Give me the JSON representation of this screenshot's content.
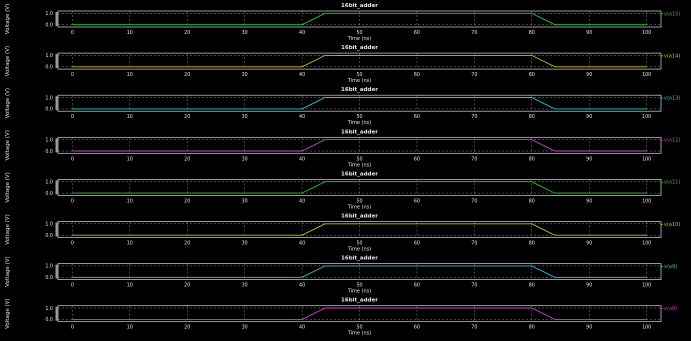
{
  "window": {
    "background": "#000000"
  },
  "chart_data": [
    {
      "type": "line",
      "title": "16bit_adder",
      "xlabel": "Time (ns)",
      "ylabel": "Voltage (V)",
      "xlim": [
        -2.5,
        102.5
      ],
      "ylim": [
        -0.2,
        1.2
      ],
      "xticks": [
        "0",
        "10",
        "20",
        "30",
        "40",
        "50",
        "60",
        "70",
        "80",
        "90",
        "100"
      ],
      "yticks": [
        "0.0",
        "1.0"
      ],
      "grid": true,
      "legend": "right",
      "series": [
        {
          "name": "v(a15)",
          "color": "#22cc22",
          "x": [
            0,
            40,
            44,
            80,
            84,
            100
          ],
          "y": [
            0,
            0,
            1,
            1,
            0,
            0
          ]
        }
      ]
    },
    {
      "type": "line",
      "title": "16bit_adder",
      "xlabel": "Time (ns)",
      "ylabel": "Voltage (V)",
      "xlim": [
        -2.5,
        102.5
      ],
      "ylim": [
        -0.2,
        1.2
      ],
      "xticks": [
        "0",
        "10",
        "20",
        "30",
        "40",
        "50",
        "60",
        "70",
        "80",
        "90",
        "100"
      ],
      "yticks": [
        "0.0",
        "1.0"
      ],
      "grid": true,
      "legend": "right",
      "series": [
        {
          "name": "v(a14)",
          "color": "#d4c000",
          "x": [
            0,
            40,
            44,
            80,
            84,
            100
          ],
          "y": [
            0,
            0,
            1,
            1,
            0,
            0
          ]
        }
      ]
    },
    {
      "type": "line",
      "title": "16bit_adder",
      "xlabel": "Time (ns)",
      "ylabel": "Voltage (V)",
      "xlim": [
        -2.5,
        102.5
      ],
      "ylim": [
        -0.2,
        1.2
      ],
      "xticks": [
        "0",
        "10",
        "20",
        "30",
        "40",
        "50",
        "60",
        "70",
        "80",
        "90",
        "100"
      ],
      "yticks": [
        "0.0",
        "1.0"
      ],
      "grid": true,
      "legend": "right",
      "series": [
        {
          "name": "v(a13)",
          "color": "#22c8dc",
          "x": [
            0,
            40,
            44,
            80,
            84,
            100
          ],
          "y": [
            0,
            0,
            1,
            1,
            0,
            0
          ]
        }
      ]
    },
    {
      "type": "line",
      "title": "16bit_adder",
      "xlabel": "Time (ns)",
      "ylabel": "Voltage (V)",
      "xlim": [
        -2.5,
        102.5
      ],
      "ylim": [
        -0.2,
        1.2
      ],
      "xticks": [
        "0",
        "10",
        "20",
        "30",
        "40",
        "50",
        "60",
        "70",
        "80",
        "90",
        "100"
      ],
      "yticks": [
        "0.0",
        "1.0"
      ],
      "grid": true,
      "legend": "right",
      "series": [
        {
          "name": "v(a12)",
          "color": "#d23cd2",
          "x": [
            0,
            40,
            44,
            80,
            84,
            100
          ],
          "y": [
            0,
            0,
            1,
            1,
            0,
            0
          ]
        }
      ]
    },
    {
      "type": "line",
      "title": "16bit_adder",
      "xlabel": "Time (ns)",
      "ylabel": "Voltage (V)",
      "xlim": [
        -2.5,
        102.5
      ],
      "ylim": [
        -0.2,
        1.2
      ],
      "xticks": [
        "0",
        "10",
        "20",
        "30",
        "40",
        "50",
        "60",
        "70",
        "80",
        "90",
        "100"
      ],
      "yticks": [
        "0.0",
        "1.0"
      ],
      "grid": true,
      "legend": "right",
      "series": [
        {
          "name": "v(a11)",
          "color": "#22cc22",
          "x": [
            0,
            40,
            44,
            80,
            84,
            100
          ],
          "y": [
            0,
            0,
            1,
            1,
            0,
            0
          ]
        }
      ]
    },
    {
      "type": "line",
      "title": "16bit_adder",
      "xlabel": "Time (ns)",
      "ylabel": "Voltage (V)",
      "xlim": [
        -2.5,
        102.5
      ],
      "ylim": [
        -0.2,
        1.2
      ],
      "xticks": [
        "0",
        "10",
        "20",
        "30",
        "40",
        "50",
        "60",
        "70",
        "80",
        "90",
        "100"
      ],
      "yticks": [
        "0.0",
        "1.0"
      ],
      "grid": true,
      "legend": "right",
      "series": [
        {
          "name": "v(a10)",
          "color": "#d4c000",
          "x": [
            0,
            40,
            44,
            80,
            84,
            100
          ],
          "y": [
            0,
            0,
            1,
            1,
            0,
            0
          ]
        }
      ]
    },
    {
      "type": "line",
      "title": "16bit_adder",
      "xlabel": "Time (ns)",
      "ylabel": "Voltage (V)",
      "xlim": [
        -2.5,
        102.5
      ],
      "ylim": [
        -0.2,
        1.2
      ],
      "xticks": [
        "0",
        "10",
        "20",
        "30",
        "40",
        "50",
        "60",
        "70",
        "80",
        "90",
        "100"
      ],
      "yticks": [
        "0.0",
        "1.0"
      ],
      "grid": true,
      "legend": "right",
      "series": [
        {
          "name": "v(a9)",
          "color": "#22c8dc",
          "x": [
            0,
            40,
            44,
            80,
            84,
            100
          ],
          "y": [
            0,
            0,
            1,
            1,
            0,
            0
          ]
        }
      ]
    },
    {
      "type": "line",
      "title": "16bit_adder",
      "xlabel": "Time (ns)",
      "ylabel": "Voltage (V)",
      "xlim": [
        -2.5,
        102.5
      ],
      "ylim": [
        -0.2,
        1.2
      ],
      "xticks": [
        "0",
        "10",
        "20",
        "30",
        "40",
        "50",
        "60",
        "70",
        "80",
        "90",
        "100"
      ],
      "yticks": [
        "0.0",
        "1.0"
      ],
      "grid": true,
      "legend": "right",
      "series": [
        {
          "name": "v(a8)",
          "color": "#d23cd2",
          "x": [
            0,
            40,
            44,
            80,
            84,
            100
          ],
          "y": [
            0,
            0,
            1,
            1,
            0,
            0
          ]
        }
      ]
    }
  ]
}
